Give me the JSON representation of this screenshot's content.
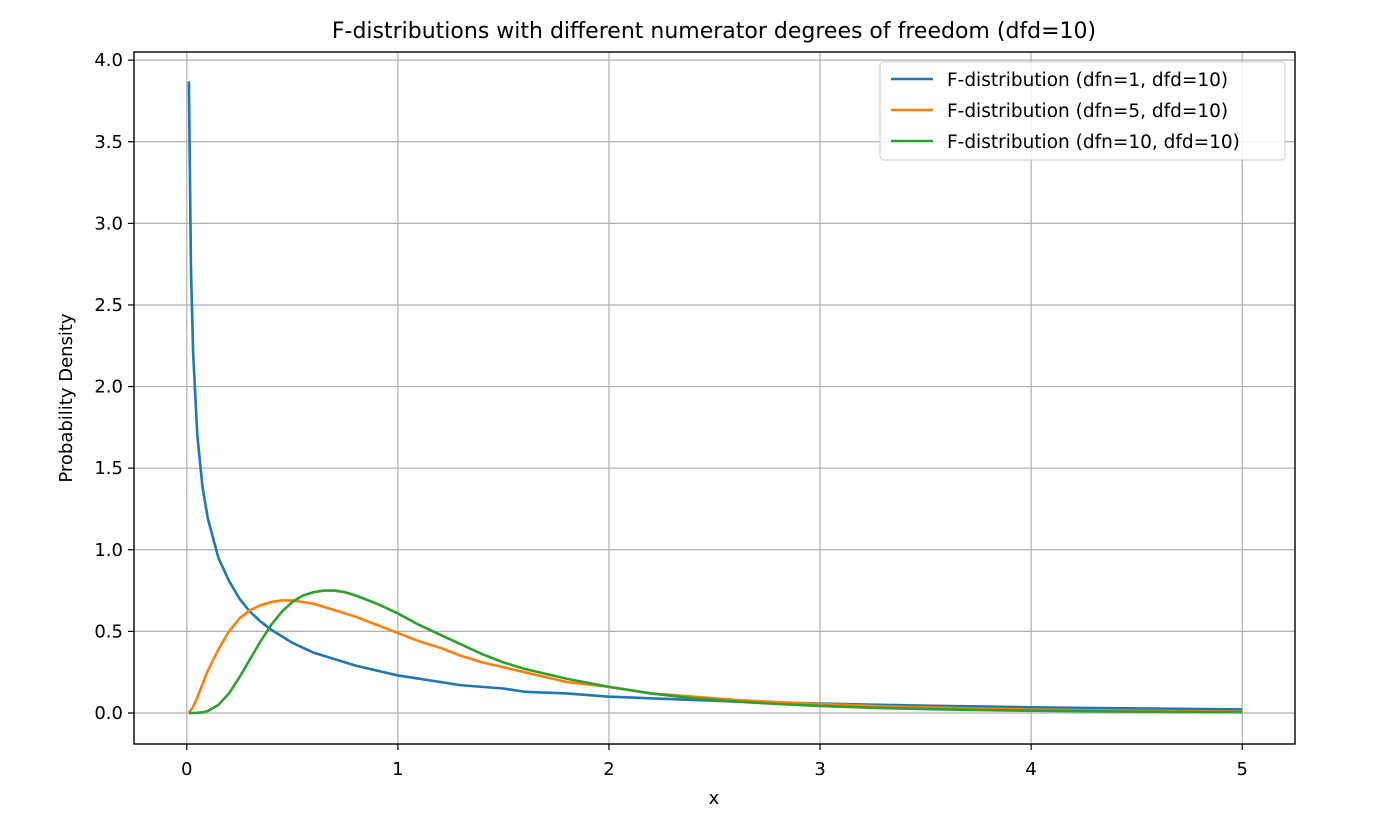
{
  "chart_data": {
    "type": "line",
    "title": "F-distributions with different numerator degrees of freedom (dfd=10)",
    "xlabel": "x",
    "ylabel": "Probability Density",
    "xlim": [
      -0.25,
      5.25
    ],
    "ylim": [
      -0.19,
      4.05
    ],
    "xticks": [
      0,
      1,
      2,
      3,
      4,
      5
    ],
    "xtick_labels": [
      "0",
      "1",
      "2",
      "3",
      "4",
      "5"
    ],
    "yticks": [
      0.0,
      0.5,
      1.0,
      1.5,
      2.0,
      2.5,
      3.0,
      3.5,
      4.0
    ],
    "ytick_labels": [
      "0.0",
      "0.5",
      "1.0",
      "1.5",
      "2.0",
      "2.5",
      "3.0",
      "3.5",
      "4.0"
    ],
    "grid": true,
    "legend_position": "top-right",
    "x": [
      0.01,
      0.02,
      0.03,
      0.05,
      0.075,
      0.1,
      0.15,
      0.2,
      0.25,
      0.3,
      0.35,
      0.4,
      0.45,
      0.5,
      0.55,
      0.6,
      0.65,
      0.7,
      0.75,
      0.8,
      0.9,
      1.0,
      1.1,
      1.2,
      1.3,
      1.4,
      1.5,
      1.6,
      1.8,
      2.0,
      2.2,
      2.4,
      2.6,
      2.8,
      3.0,
      3.25,
      3.5,
      3.75,
      4.0,
      4.25,
      4.5,
      4.75,
      5.0
    ],
    "series": [
      {
        "name": "F-distribution (dfn=1, dfd=10)",
        "color": "#1f77b4",
        "values": [
          3.87,
          2.72,
          2.21,
          1.7,
          1.38,
          1.19,
          0.95,
          0.81,
          0.7,
          0.62,
          0.56,
          0.51,
          0.47,
          0.43,
          0.4,
          0.37,
          0.35,
          0.33,
          0.31,
          0.29,
          0.26,
          0.23,
          0.21,
          0.19,
          0.17,
          0.16,
          0.15,
          0.13,
          0.12,
          0.1,
          0.09,
          0.08,
          0.07,
          0.065,
          0.058,
          0.051,
          0.045,
          0.04,
          0.035,
          0.031,
          0.028,
          0.025,
          0.022
        ]
      },
      {
        "name": "F-distribution (dfn=5, dfd=10)",
        "color": "#ff7f0e",
        "values": [
          0.0045,
          0.018,
          0.038,
          0.095,
          0.18,
          0.26,
          0.39,
          0.5,
          0.58,
          0.63,
          0.66,
          0.68,
          0.69,
          0.69,
          0.68,
          0.67,
          0.65,
          0.63,
          0.61,
          0.59,
          0.54,
          0.49,
          0.44,
          0.4,
          0.35,
          0.31,
          0.28,
          0.25,
          0.19,
          0.16,
          0.12,
          0.1,
          0.08,
          0.066,
          0.055,
          0.043,
          0.034,
          0.027,
          0.021,
          0.017,
          0.014,
          0.011,
          0.009
        ]
      },
      {
        "name": "F-distribution (dfn=10, dfd=10)",
        "color": "#2ca02c",
        "values": [
          0.0,
          0.0,
          0.0,
          0.001,
          0.004,
          0.012,
          0.05,
          0.12,
          0.22,
          0.33,
          0.44,
          0.54,
          0.62,
          0.68,
          0.72,
          0.74,
          0.75,
          0.75,
          0.74,
          0.72,
          0.67,
          0.61,
          0.54,
          0.48,
          0.42,
          0.36,
          0.31,
          0.27,
          0.21,
          0.16,
          0.12,
          0.09,
          0.07,
          0.055,
          0.043,
          0.032,
          0.024,
          0.018,
          0.014,
          0.011,
          0.008,
          0.006,
          0.005
        ]
      }
    ]
  }
}
